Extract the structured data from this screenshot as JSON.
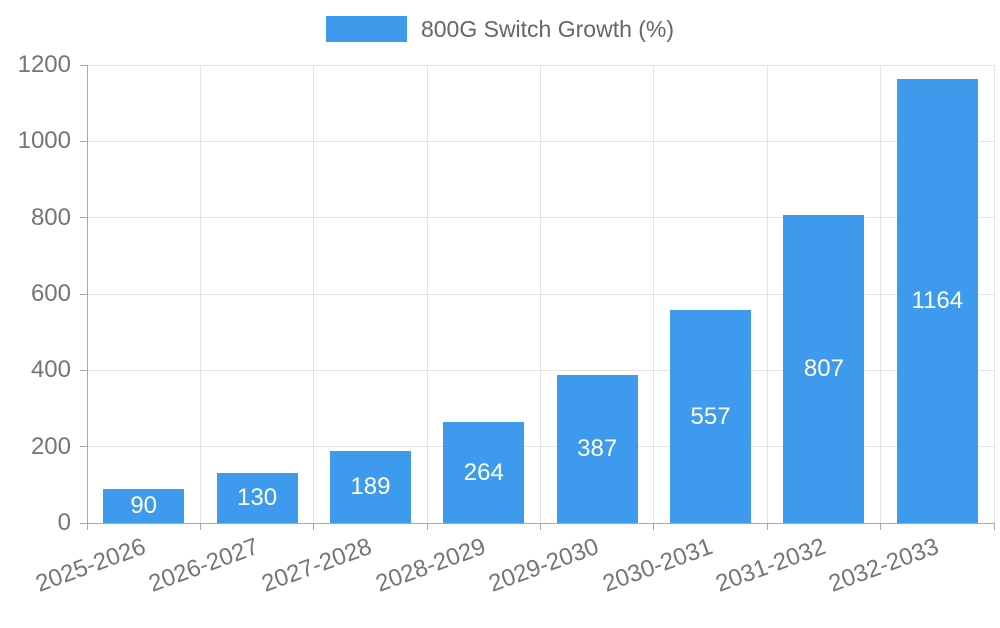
{
  "chart_data": {
    "type": "bar",
    "title": "",
    "xlabel": "",
    "ylabel": "",
    "legend": "800G Switch Growth (%)",
    "legend_position": "top",
    "categories": [
      "2025-2026",
      "2026-2027",
      "2027-2028",
      "2028-2029",
      "2029-2030",
      "2030-2031",
      "2031-2032",
      "2032-2033"
    ],
    "series": [
      {
        "name": "800G Switch Growth (%)",
        "values": [
          90,
          130,
          189,
          264,
          387,
          557,
          807,
          1164
        ]
      }
    ],
    "yticks": [
      0,
      200,
      400,
      600,
      800,
      1000,
      1200
    ],
    "ylim": [
      0,
      1200
    ],
    "grid": true,
    "value_label_position": "inside-center",
    "x_label_rotation_deg": -20,
    "colors": {
      "bar": "#3D9AEC",
      "value_label": "#FFFFFF",
      "tick_text": "#757575",
      "legend_text": "#666666",
      "grid": "#E3E3E3",
      "axis": "#A8A8A8",
      "background": "#FFFFFF"
    }
  }
}
